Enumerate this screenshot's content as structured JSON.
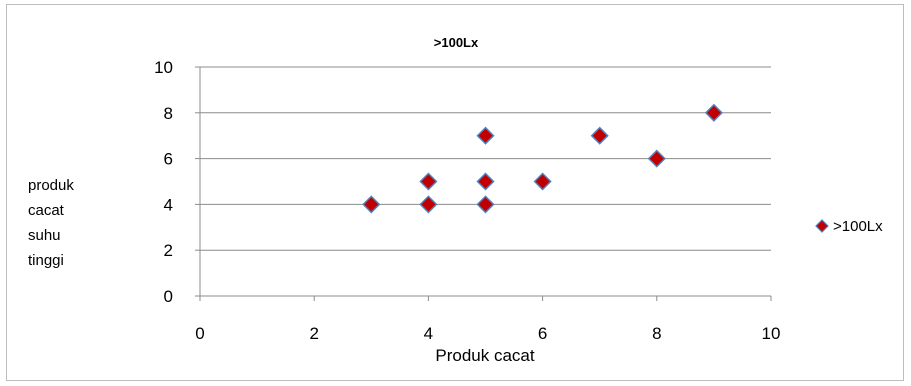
{
  "chart_data": {
    "type": "scatter",
    "title": ">100Lx",
    "xlabel": "Produk cacat",
    "ylabel_lines": [
      "produk",
      "cacat",
      "suhu",
      "tinggi"
    ],
    "xlim": [
      0,
      10
    ],
    "ylim": [
      0,
      10
    ],
    "xticks": [
      0,
      2,
      4,
      6,
      8,
      10
    ],
    "yticks": [
      0,
      2,
      4,
      6,
      8,
      10
    ],
    "grid": "horizontal",
    "legend_position": "right",
    "series": [
      {
        "name": ">100Lx",
        "marker": "diamond",
        "color": "#c00000",
        "edge_color": "#4f81bd",
        "points": [
          {
            "x": 3,
            "y": 4
          },
          {
            "x": 4,
            "y": 5
          },
          {
            "x": 4,
            "y": 4
          },
          {
            "x": 5,
            "y": 7
          },
          {
            "x": 5,
            "y": 5
          },
          {
            "x": 5,
            "y": 4
          },
          {
            "x": 6,
            "y": 5
          },
          {
            "x": 7,
            "y": 7
          },
          {
            "x": 8,
            "y": 6
          },
          {
            "x": 9,
            "y": 8
          }
        ]
      }
    ]
  }
}
